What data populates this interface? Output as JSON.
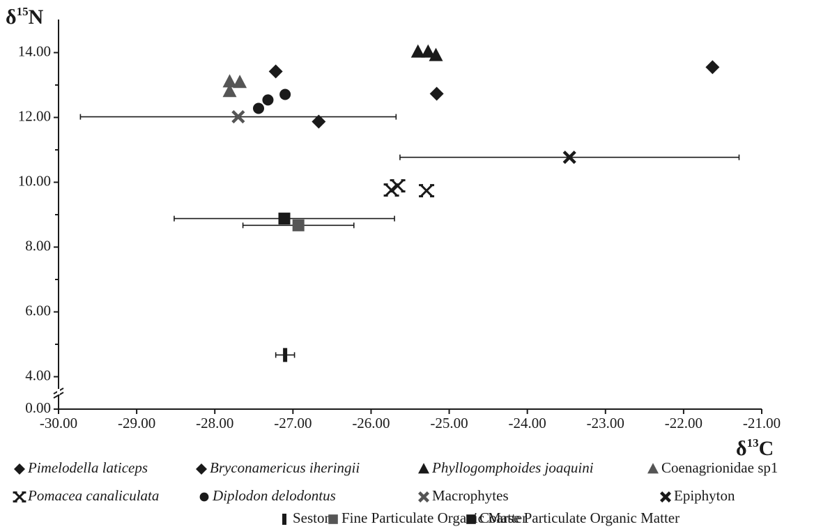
{
  "chart_data": {
    "type": "scatter",
    "x_label": [
      "δ",
      "13",
      "C"
    ],
    "y_label": [
      "δ",
      "15",
      "N"
    ],
    "xlim": [
      -30,
      -21
    ],
    "xticks": [
      {
        "value": -30,
        "label": "-30.00"
      },
      {
        "value": -29,
        "label": "-29.00"
      },
      {
        "value": -28,
        "label": "-28.00"
      },
      {
        "value": -27,
        "label": "-27.00"
      },
      {
        "value": -26,
        "label": "-26.00"
      },
      {
        "value": -25,
        "label": "-25.00"
      },
      {
        "value": -24,
        "label": "-24.00"
      },
      {
        "value": -23,
        "label": "-23.00"
      },
      {
        "value": -22,
        "label": "-22.00"
      },
      {
        "value": -21,
        "label": "-21.00"
      }
    ],
    "ylim": [
      0,
      15
    ],
    "axis_break": [
      0,
      3
    ],
    "yticks": [
      {
        "value": 0,
        "label": "0.00"
      },
      {
        "value": 4,
        "label": "4.00"
      },
      {
        "value": 6,
        "label": "6.00"
      },
      {
        "value": 8,
        "label": "8.00"
      },
      {
        "value": 10,
        "label": "10.00"
      },
      {
        "value": 12,
        "label": "12.00"
      },
      {
        "value": 14,
        "label": "14.00"
      }
    ],
    "yminorticks": [
      5,
      7,
      9,
      11,
      13
    ],
    "series": [
      {
        "name": "Pimelodella laticeps",
        "italic": true,
        "marker": "diamond",
        "color": "#1a1a1a",
        "x": [
          -27.22,
          -26.67
        ],
        "values": [
          13.42,
          11.87
        ]
      },
      {
        "name": "Bryconamericus iheringii",
        "italic": true,
        "marker": "diamond",
        "color": "#1a1a1a",
        "x": [
          -25.16,
          -21.63
        ],
        "values": [
          12.73,
          13.55
        ]
      },
      {
        "name": "Phyllogomphoides joaquini",
        "italic": true,
        "marker": "triangle",
        "color": "#1a1a1a",
        "x": [
          -25.4,
          -25.27,
          -25.17
        ],
        "values": [
          14.02,
          14.02,
          13.91
        ]
      },
      {
        "name": "Coenagrionidae sp1",
        "italic": false,
        "marker": "triangle",
        "color": "#555555",
        "x": [
          -27.81,
          -27.68,
          -27.81
        ],
        "values": [
          13.1,
          13.08,
          12.8
        ]
      },
      {
        "name": "Pomacea canaliculata",
        "italic": true,
        "marker": "star",
        "color": "#1a1a1a",
        "x": [
          -25.74,
          -25.66,
          -25.29
        ],
        "values": [
          9.76,
          9.89,
          9.74
        ]
      },
      {
        "name": "Diplodon delodontus",
        "italic": true,
        "marker": "circle",
        "color": "#1a1a1a",
        "x": [
          -27.44,
          -27.32,
          -27.1
        ],
        "values": [
          12.28,
          12.54,
          12.71
        ]
      },
      {
        "name": "Macrophytes",
        "italic": false,
        "marker": "cross",
        "color": "#555555",
        "x": [
          -27.7
        ],
        "values": [
          12.02
        ],
        "xerr": [
          2.02
        ]
      },
      {
        "name": "Epiphyton",
        "italic": false,
        "marker": "cross",
        "color": "#1a1a1a",
        "x": [
          -23.46
        ],
        "values": [
          10.77
        ],
        "xerr": [
          2.17
        ]
      },
      {
        "name": "Seston",
        "italic": false,
        "marker": "bar",
        "color": "#1a1a1a",
        "x": [
          -27.1
        ],
        "values": [
          4.67
        ],
        "xerr": [
          0.12
        ]
      },
      {
        "name": "Fine Particulate Organic Matter",
        "italic": false,
        "marker": "square",
        "color": "#555555",
        "x": [
          -26.93
        ],
        "values": [
          8.67
        ],
        "xerr": [
          0.71
        ]
      },
      {
        "name": "Coarse Particulate Organic Matter",
        "italic": false,
        "marker": "square",
        "color": "#1a1a1a",
        "x": [
          -27.11
        ],
        "values": [
          8.88
        ],
        "xerr": [
          1.41
        ]
      }
    ]
  }
}
